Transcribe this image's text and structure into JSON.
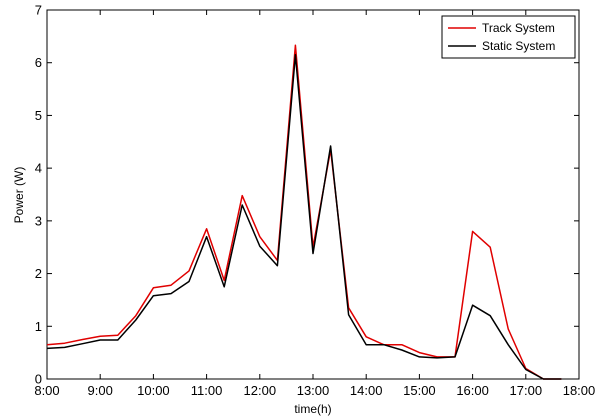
{
  "chart_data": {
    "type": "line",
    "title": "",
    "xlabel": "time(h)",
    "ylabel": "Power (W)",
    "xlim": [
      8,
      18
    ],
    "ylim": [
      0,
      7
    ],
    "x_ticks": [
      8,
      9,
      10,
      11,
      12,
      13,
      14,
      15,
      16,
      17,
      18
    ],
    "x_tick_labels": [
      "8:00",
      "9:00",
      "10:00",
      "11:00",
      "12:00",
      "13:00",
      "14:00",
      "15:00",
      "16:00",
      "17:00",
      "18:00"
    ],
    "y_ticks": [
      0,
      1,
      2,
      3,
      4,
      5,
      6,
      7
    ],
    "y_tick_labels": [
      "0",
      "1",
      "2",
      "3",
      "4",
      "5",
      "6",
      "7"
    ],
    "grid": false,
    "legend_position": "top-right",
    "series": [
      {
        "name": "Track System",
        "color": "#e00000",
        "x": [
          8.0,
          8.33,
          8.67,
          9.0,
          9.33,
          9.67,
          10.0,
          10.33,
          10.67,
          11.0,
          11.33,
          11.67,
          12.0,
          12.33,
          12.67,
          13.0,
          13.33,
          13.67,
          14.0,
          14.33,
          14.67,
          15.0,
          15.33,
          15.67,
          16.0,
          16.33,
          16.67,
          17.0,
          17.33,
          17.67
        ],
        "y": [
          0.65,
          0.68,
          0.75,
          0.81,
          0.83,
          1.2,
          1.73,
          1.78,
          2.05,
          2.85,
          1.87,
          3.48,
          2.7,
          2.25,
          6.33,
          2.5,
          4.35,
          1.35,
          0.8,
          0.65,
          0.65,
          0.5,
          0.42,
          0.42,
          2.8,
          2.5,
          0.95,
          0.2,
          0.0,
          0.0
        ]
      },
      {
        "name": "Static System",
        "color": "#000000",
        "x": [
          8.0,
          8.33,
          8.67,
          9.0,
          9.33,
          9.67,
          10.0,
          10.33,
          10.67,
          11.0,
          11.33,
          11.67,
          12.0,
          12.33,
          12.67,
          13.0,
          13.33,
          13.67,
          14.0,
          14.33,
          14.67,
          15.0,
          15.33,
          15.67,
          16.0,
          16.33,
          16.67,
          17.0,
          17.33,
          17.67
        ],
        "y": [
          0.58,
          0.6,
          0.67,
          0.74,
          0.74,
          1.12,
          1.58,
          1.62,
          1.85,
          2.7,
          1.75,
          3.3,
          2.52,
          2.15,
          6.15,
          2.38,
          4.42,
          1.22,
          0.65,
          0.65,
          0.55,
          0.42,
          0.4,
          0.42,
          1.4,
          1.2,
          0.65,
          0.18,
          0.0,
          0.0
        ]
      }
    ]
  }
}
